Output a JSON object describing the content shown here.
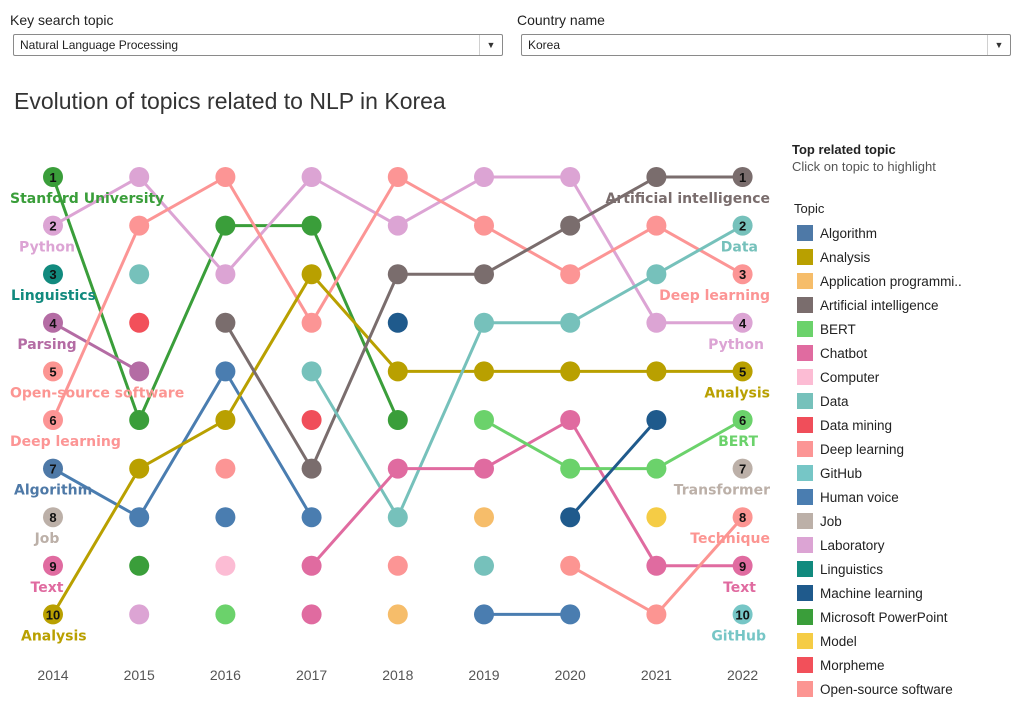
{
  "filters": {
    "topic": {
      "label": "Key search topic",
      "value": "Natural Language Processing"
    },
    "country": {
      "label": "Country name",
      "value": "Korea"
    }
  },
  "title": "Evolution of topics related to NLP in Korea",
  "legend": {
    "title": "Top related topic",
    "subtitle": "Click on topic to highlight",
    "heading": "Topic",
    "items": [
      {
        "label": "Algorithm",
        "color": "#4e79a7"
      },
      {
        "label": "Analysis",
        "color": "#b9a000"
      },
      {
        "label": "Application programmi..",
        "color": "#f6bd6a"
      },
      {
        "label": "Artificial intelligence",
        "color": "#7a6d6d"
      },
      {
        "label": "BERT",
        "color": "#6bd26b"
      },
      {
        "label": "Chatbot",
        "color": "#e06ba0"
      },
      {
        "label": "Computer",
        "color": "#fcbcd4"
      },
      {
        "label": "Data",
        "color": "#76c1bb"
      },
      {
        "label": "Data mining",
        "color": "#f04e5a"
      },
      {
        "label": "Deep learning",
        "color": "#fc9595"
      },
      {
        "label": "GitHub",
        "color": "#76c6c6"
      },
      {
        "label": "Human voice",
        "color": "#4a7db0"
      },
      {
        "label": "Job",
        "color": "#bcb0a8"
      },
      {
        "label": "Laboratory",
        "color": "#dca4d4"
      },
      {
        "label": "Linguistics",
        "color": "#118a7e"
      },
      {
        "label": "Machine learning",
        "color": "#1f5a8c"
      },
      {
        "label": "Microsoft PowerPoint",
        "color": "#3a9e3a"
      },
      {
        "label": "Model",
        "color": "#f5cc45"
      },
      {
        "label": "Morpheme",
        "color": "#f2505a"
      },
      {
        "label": "Open-source software",
        "color": "#fc9592"
      }
    ]
  },
  "chart_data": {
    "type": "bump",
    "x": [
      "2014",
      "2015",
      "2016",
      "2017",
      "2018",
      "2019",
      "2020",
      "2021",
      "2022"
    ],
    "ylim": [
      1,
      10
    ],
    "y_reversed": true,
    "left_labels": [
      {
        "rank": "1",
        "label": "Stanford University",
        "color": "#3a9e3a"
      },
      {
        "rank": "2",
        "label": "Python",
        "color": "#dca4d4"
      },
      {
        "rank": "3",
        "label": "Linguistics",
        "color": "#118a7e"
      },
      {
        "rank": "4",
        "label": "Parsing",
        "color": "#b46ca4"
      },
      {
        "rank": "5",
        "label": "Open-source software",
        "color": "#fc9592"
      },
      {
        "rank": "6",
        "label": "Deep learning",
        "color": "#fc9595"
      },
      {
        "rank": "7",
        "label": "Algorithm",
        "color": "#4e79a7"
      },
      {
        "rank": "8",
        "label": "Job",
        "color": "#bcb0a8"
      },
      {
        "rank": "9",
        "label": "Text",
        "color": "#e06ba0"
      },
      {
        "rank": "10",
        "label": "Analysis",
        "color": "#b9a000"
      }
    ],
    "right_labels": [
      {
        "rank": "1",
        "label": "Artificial intelligence",
        "color": "#7a6d6d"
      },
      {
        "rank": "2",
        "label": "Data",
        "color": "#76c1bb"
      },
      {
        "rank": "3",
        "label": "Deep learning",
        "color": "#fc9595"
      },
      {
        "rank": "4",
        "label": "Python",
        "color": "#dca4d4"
      },
      {
        "rank": "5",
        "label": "Analysis",
        "color": "#b9a000"
      },
      {
        "rank": "6",
        "label": "BERT",
        "color": "#6bd26b"
      },
      {
        "rank": "7",
        "label": "Transformer",
        "color": "#bcb0a8"
      },
      {
        "rank": "8",
        "label": "Technique",
        "color": "#fc9592"
      },
      {
        "rank": "9",
        "label": "Text",
        "color": "#e06ba0"
      },
      {
        "rank": "10",
        "label": "GitHub",
        "color": "#76c6c6"
      }
    ],
    "series": [
      {
        "color": "#3a9e3a",
        "points": [
          [
            0,
            1
          ],
          [
            1,
            6
          ],
          [
            2,
            2
          ],
          [
            3,
            2
          ],
          [
            4,
            6
          ]
        ]
      },
      {
        "color": "#dca4d4",
        "points": [
          [
            0,
            2
          ],
          [
            1,
            1
          ],
          [
            2,
            3
          ],
          [
            3,
            1
          ],
          [
            4,
            2
          ],
          [
            5,
            1
          ],
          [
            6,
            1
          ],
          [
            7,
            4
          ],
          [
            8,
            4
          ]
        ]
      },
      {
        "color": "#b46ca4",
        "points": [
          [
            0,
            4
          ],
          [
            1,
            5
          ]
        ]
      },
      {
        "color": "#fc9595",
        "points": [
          [
            0,
            6
          ],
          [
            1,
            2
          ],
          [
            2,
            1
          ],
          [
            3,
            4
          ]
        ]
      },
      {
        "color": "#fc9595",
        "points": [
          [
            3,
            4
          ],
          [
            4,
            1
          ],
          [
            5,
            2
          ],
          [
            6,
            3
          ],
          [
            7,
            2
          ],
          [
            8,
            3
          ]
        ]
      },
      {
        "color": "#4a7db0",
        "points": [
          [
            0,
            7
          ],
          [
            1,
            8
          ],
          [
            2,
            5
          ],
          [
            3,
            8
          ]
        ]
      },
      {
        "color": "#b9a000",
        "points": [
          [
            0,
            10
          ],
          [
            1,
            7
          ],
          [
            2,
            6
          ],
          [
            3,
            3
          ],
          [
            4,
            5
          ],
          [
            5,
            5
          ],
          [
            6,
            5
          ],
          [
            7,
            5
          ],
          [
            8,
            5
          ]
        ]
      },
      {
        "color": "#7a6d6d",
        "points": [
          [
            2,
            4
          ],
          [
            3,
            7
          ],
          [
            4,
            3
          ],
          [
            5,
            3
          ],
          [
            6,
            2
          ],
          [
            7,
            1
          ],
          [
            8,
            1
          ]
        ]
      },
      {
        "color": "#76c1bb",
        "points": [
          [
            3,
            5
          ],
          [
            4,
            8
          ],
          [
            5,
            4
          ],
          [
            6,
            4
          ],
          [
            7,
            3
          ],
          [
            8,
            2
          ]
        ]
      },
      {
        "color": "#e06ba0",
        "points": [
          [
            3,
            9
          ],
          [
            4,
            7
          ],
          [
            5,
            7
          ],
          [
            6,
            6
          ],
          [
            7,
            9
          ],
          [
            8,
            9
          ]
        ]
      },
      {
        "color": "#6bd26b",
        "points": [
          [
            5,
            6
          ],
          [
            6,
            7
          ],
          [
            7,
            7
          ],
          [
            8,
            6
          ]
        ]
      },
      {
        "color": "#1f5a8c",
        "points": [
          [
            6,
            8
          ],
          [
            7,
            6
          ]
        ]
      },
      {
        "color": "#4a7db0",
        "points": [
          [
            5,
            10
          ],
          [
            6,
            10
          ]
        ]
      },
      {
        "color": "#fc9592",
        "points": [
          [
            6,
            9
          ],
          [
            7,
            10
          ],
          [
            8,
            8
          ]
        ]
      }
    ],
    "points": [
      {
        "x": 0,
        "y": 1,
        "color": "#3a9e3a"
      },
      {
        "x": 0,
        "y": 2,
        "color": "#dca4d4"
      },
      {
        "x": 0,
        "y": 3,
        "color": "#118a7e"
      },
      {
        "x": 0,
        "y": 4,
        "color": "#b46ca4"
      },
      {
        "x": 0,
        "y": 5,
        "color": "#fc9592"
      },
      {
        "x": 0,
        "y": 6,
        "color": "#fc9595"
      },
      {
        "x": 0,
        "y": 7,
        "color": "#4e79a7"
      },
      {
        "x": 0,
        "y": 8,
        "color": "#bcb0a8"
      },
      {
        "x": 0,
        "y": 9,
        "color": "#e06ba0"
      },
      {
        "x": 0,
        "y": 10,
        "color": "#b9a000"
      },
      {
        "x": 1,
        "y": 1,
        "color": "#dca4d4"
      },
      {
        "x": 1,
        "y": 2,
        "color": "#fc9595"
      },
      {
        "x": 1,
        "y": 3,
        "color": "#76c1bb"
      },
      {
        "x": 1,
        "y": 4,
        "color": "#f2505a"
      },
      {
        "x": 1,
        "y": 5,
        "color": "#b46ca4"
      },
      {
        "x": 1,
        "y": 6,
        "color": "#3a9e3a"
      },
      {
        "x": 1,
        "y": 7,
        "color": "#b9a000"
      },
      {
        "x": 1,
        "y": 8,
        "color": "#4a7db0"
      },
      {
        "x": 1,
        "y": 9,
        "color": "#3a9e3a"
      },
      {
        "x": 1,
        "y": 10,
        "color": "#dca4d4"
      },
      {
        "x": 2,
        "y": 1,
        "color": "#fc9595"
      },
      {
        "x": 2,
        "y": 2,
        "color": "#3a9e3a"
      },
      {
        "x": 2,
        "y": 3,
        "color": "#dca4d4"
      },
      {
        "x": 2,
        "y": 4,
        "color": "#7a6d6d"
      },
      {
        "x": 2,
        "y": 5,
        "color": "#4a7db0"
      },
      {
        "x": 2,
        "y": 6,
        "color": "#b9a000"
      },
      {
        "x": 2,
        "y": 7,
        "color": "#fc9595"
      },
      {
        "x": 2,
        "y": 8,
        "color": "#4a7db0"
      },
      {
        "x": 2,
        "y": 9,
        "color": "#fcbcd4"
      },
      {
        "x": 2,
        "y": 10,
        "color": "#6bd26b"
      },
      {
        "x": 3,
        "y": 1,
        "color": "#dca4d4"
      },
      {
        "x": 3,
        "y": 2,
        "color": "#3a9e3a"
      },
      {
        "x": 3,
        "y": 3,
        "color": "#b9a000"
      },
      {
        "x": 3,
        "y": 4,
        "color": "#fc9595"
      },
      {
        "x": 3,
        "y": 5,
        "color": "#76c1bb"
      },
      {
        "x": 3,
        "y": 6,
        "color": "#f04e5a"
      },
      {
        "x": 3,
        "y": 7,
        "color": "#7a6d6d"
      },
      {
        "x": 3,
        "y": 8,
        "color": "#4a7db0"
      },
      {
        "x": 3,
        "y": 9,
        "color": "#e06ba0"
      },
      {
        "x": 3,
        "y": 10,
        "color": "#e06ba0"
      },
      {
        "x": 4,
        "y": 1,
        "color": "#fc9595"
      },
      {
        "x": 4,
        "y": 2,
        "color": "#dca4d4"
      },
      {
        "x": 4,
        "y": 3,
        "color": "#7a6d6d"
      },
      {
        "x": 4,
        "y": 4,
        "color": "#1f5a8c"
      },
      {
        "x": 4,
        "y": 5,
        "color": "#b9a000"
      },
      {
        "x": 4,
        "y": 6,
        "color": "#3a9e3a"
      },
      {
        "x": 4,
        "y": 7,
        "color": "#e06ba0"
      },
      {
        "x": 4,
        "y": 8,
        "color": "#76c1bb"
      },
      {
        "x": 4,
        "y": 9,
        "color": "#fc9595"
      },
      {
        "x": 4,
        "y": 10,
        "color": "#f6bd6a"
      },
      {
        "x": 5,
        "y": 1,
        "color": "#dca4d4"
      },
      {
        "x": 5,
        "y": 2,
        "color": "#fc9595"
      },
      {
        "x": 5,
        "y": 3,
        "color": "#7a6d6d"
      },
      {
        "x": 5,
        "y": 4,
        "color": "#76c1bb"
      },
      {
        "x": 5,
        "y": 5,
        "color": "#b9a000"
      },
      {
        "x": 5,
        "y": 6,
        "color": "#6bd26b"
      },
      {
        "x": 5,
        "y": 7,
        "color": "#e06ba0"
      },
      {
        "x": 5,
        "y": 8,
        "color": "#f6bd6a"
      },
      {
        "x": 5,
        "y": 9,
        "color": "#76c1bb"
      },
      {
        "x": 5,
        "y": 10,
        "color": "#4a7db0"
      },
      {
        "x": 6,
        "y": 1,
        "color": "#dca4d4"
      },
      {
        "x": 6,
        "y": 2,
        "color": "#7a6d6d"
      },
      {
        "x": 6,
        "y": 3,
        "color": "#fc9595"
      },
      {
        "x": 6,
        "y": 4,
        "color": "#76c1bb"
      },
      {
        "x": 6,
        "y": 5,
        "color": "#b9a000"
      },
      {
        "x": 6,
        "y": 6,
        "color": "#e06ba0"
      },
      {
        "x": 6,
        "y": 7,
        "color": "#6bd26b"
      },
      {
        "x": 6,
        "y": 8,
        "color": "#1f5a8c"
      },
      {
        "x": 6,
        "y": 9,
        "color": "#fc9592"
      },
      {
        "x": 6,
        "y": 10,
        "color": "#4a7db0"
      },
      {
        "x": 7,
        "y": 1,
        "color": "#7a6d6d"
      },
      {
        "x": 7,
        "y": 2,
        "color": "#fc9595"
      },
      {
        "x": 7,
        "y": 3,
        "color": "#76c1bb"
      },
      {
        "x": 7,
        "y": 4,
        "color": "#dca4d4"
      },
      {
        "x": 7,
        "y": 5,
        "color": "#b9a000"
      },
      {
        "x": 7,
        "y": 6,
        "color": "#1f5a8c"
      },
      {
        "x": 7,
        "y": 7,
        "color": "#6bd26b"
      },
      {
        "x": 7,
        "y": 8,
        "color": "#f5cc45"
      },
      {
        "x": 7,
        "y": 9,
        "color": "#e06ba0"
      },
      {
        "x": 7,
        "y": 10,
        "color": "#fc9592"
      },
      {
        "x": 8,
        "y": 1,
        "color": "#7a6d6d"
      },
      {
        "x": 8,
        "y": 2,
        "color": "#76c1bb"
      },
      {
        "x": 8,
        "y": 3,
        "color": "#fc9595"
      },
      {
        "x": 8,
        "y": 4,
        "color": "#dca4d4"
      },
      {
        "x": 8,
        "y": 5,
        "color": "#b9a000"
      },
      {
        "x": 8,
        "y": 6,
        "color": "#6bd26b"
      },
      {
        "x": 8,
        "y": 7,
        "color": "#bcb0a8"
      },
      {
        "x": 8,
        "y": 8,
        "color": "#fc9592"
      },
      {
        "x": 8,
        "y": 9,
        "color": "#e06ba0"
      },
      {
        "x": 8,
        "y": 10,
        "color": "#76c6c6"
      }
    ]
  }
}
